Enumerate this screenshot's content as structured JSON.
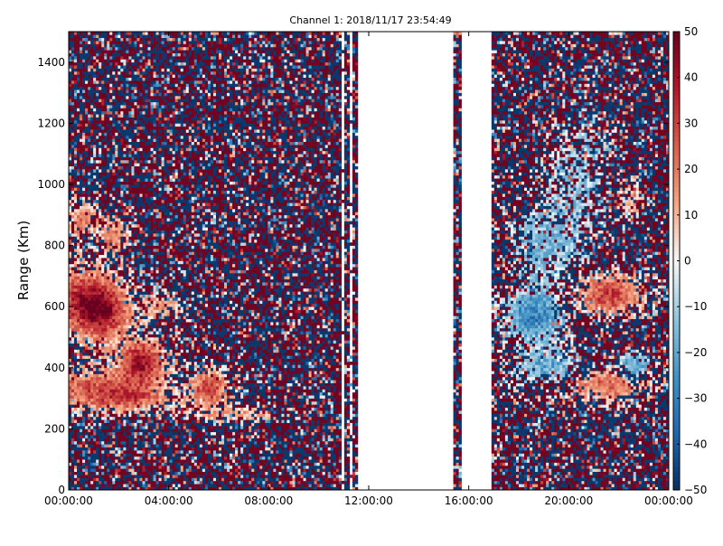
{
  "chart_data": {
    "type": "heatmap",
    "title": "Channel 1: 2018/11/17 23:54:49",
    "ylabel": "Range (Km)",
    "xlabel": "",
    "x_ticks": [
      "00:00:00",
      "04:00:00",
      "08:00:00",
      "12:00:00",
      "16:00:00",
      "20:00:00",
      "00:00:00"
    ],
    "x_range_hours": [
      0,
      24
    ],
    "y_ticks": [
      0,
      200,
      400,
      600,
      800,
      1000,
      1200,
      1400
    ],
    "ylim": [
      0,
      1500
    ],
    "colorbar": {
      "colormap": "RdBu_r",
      "range": [
        -50,
        50
      ],
      "ticks": [
        50,
        40,
        30,
        20,
        10,
        0,
        -10,
        -20,
        -30,
        -40,
        -50
      ],
      "colors": {
        "low": "#053061",
        "mid_low": "#4393c3",
        "zero": "#f7f7f7",
        "mid_high": "#d6604d",
        "high": "#67001f"
      }
    },
    "data_gaps_hours": [
      [
        11.6,
        15.4
      ],
      [
        15.7,
        16.9
      ]
    ],
    "grid": false
  }
}
